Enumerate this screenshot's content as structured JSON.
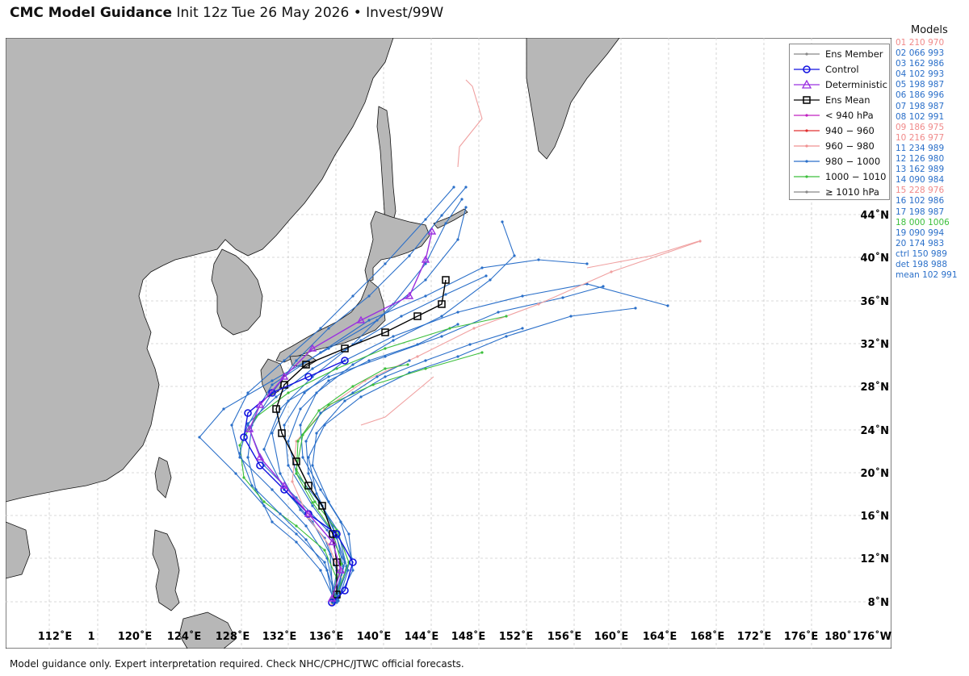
{
  "title": {
    "bold": "CMC Model Guidance",
    "rest": "Init 12z Tue 26 May 2026 • Invest/99W"
  },
  "footer": "Model guidance only. Expert interpretation required. Check NHC/CPHC/JTWC official forecasts.",
  "models_header": "Models",
  "models": [
    {
      "label": "01 210 970",
      "color": "#f08a8a"
    },
    {
      "label": "02 066 993",
      "color": "#2a6fc9"
    },
    {
      "label": "03 162 986",
      "color": "#2a6fc9"
    },
    {
      "label": "04 102 993",
      "color": "#2a6fc9"
    },
    {
      "label": "05 198 987",
      "color": "#2a6fc9"
    },
    {
      "label": "06 186 996",
      "color": "#2a6fc9"
    },
    {
      "label": "07 198 987",
      "color": "#2a6fc9"
    },
    {
      "label": "08 102 991",
      "color": "#2a6fc9"
    },
    {
      "label": "09 186 975",
      "color": "#f08a8a"
    },
    {
      "label": "10 216 977",
      "color": "#f08a8a"
    },
    {
      "label": "11 234 989",
      "color": "#2a6fc9"
    },
    {
      "label": "12 126 980",
      "color": "#2a6fc9"
    },
    {
      "label": "13 162 989",
      "color": "#2a6fc9"
    },
    {
      "label": "14 090 984",
      "color": "#2a6fc9"
    },
    {
      "label": "15 228 976",
      "color": "#f08a8a"
    },
    {
      "label": "16 102 986",
      "color": "#2a6fc9"
    },
    {
      "label": "17 198 987",
      "color": "#2a6fc9"
    },
    {
      "label": "18 000 1006",
      "color": "#3cbf3c"
    },
    {
      "label": "19 090 994",
      "color": "#2a6fc9"
    },
    {
      "label": "20 174 983",
      "color": "#2a6fc9"
    },
    {
      "label": "ctrl 150 989",
      "color": "#2a6fc9"
    },
    {
      "label": "det 198 988",
      "color": "#2a6fc9"
    },
    {
      "label": "mean 102 991",
      "color": "#2a6fc9"
    }
  ],
  "legend": [
    {
      "label": "Ens Member",
      "marker": "dot",
      "color": "#888888"
    },
    {
      "label": "Control",
      "marker": "circle",
      "color": "#1010e0"
    },
    {
      "label": "Deterministic",
      "marker": "triangle",
      "color": "#9b30e0"
    },
    {
      "label": "Ens Mean",
      "marker": "square",
      "color": "#000000"
    },
    {
      "label": "< 940 hPa",
      "marker": "dot",
      "color": "#c020c0"
    },
    {
      "label": "940 − 960",
      "marker": "dot",
      "color": "#e03030"
    },
    {
      "label": "960 − 980",
      "marker": "dot",
      "color": "#f09090"
    },
    {
      "label": "980 − 1000",
      "marker": "dot",
      "color": "#2a6fc9"
    },
    {
      "label": "1000 − 1010",
      "marker": "dot",
      "color": "#3cbf3c"
    },
    {
      "label": "≥ 1010 hPa",
      "marker": "dot",
      "color": "#888888"
    }
  ],
  "lat_labels": [
    "8˚N",
    "12˚N",
    "16˚N",
    "20˚N",
    "24˚N",
    "28˚N",
    "32˚N",
    "36˚N",
    "40˚N",
    "44˚N"
  ],
  "lon_labels": [
    "112˚E",
    "1",
    "120˚E",
    "124˚E",
    "128˚E",
    "132˚E",
    "136˚E",
    "140˚E",
    "144˚E",
    "148˚E",
    "152˚E",
    "156˚E",
    "160˚E",
    "164˚E",
    "168˚E",
    "172˚E",
    "176˚E",
    "180˚",
    "176˚W"
  ],
  "colors": {
    "land": "#b7b7b7",
    "ocean": "#ffffff",
    "grid": "#cccccc",
    "coast": "#111111"
  }
}
